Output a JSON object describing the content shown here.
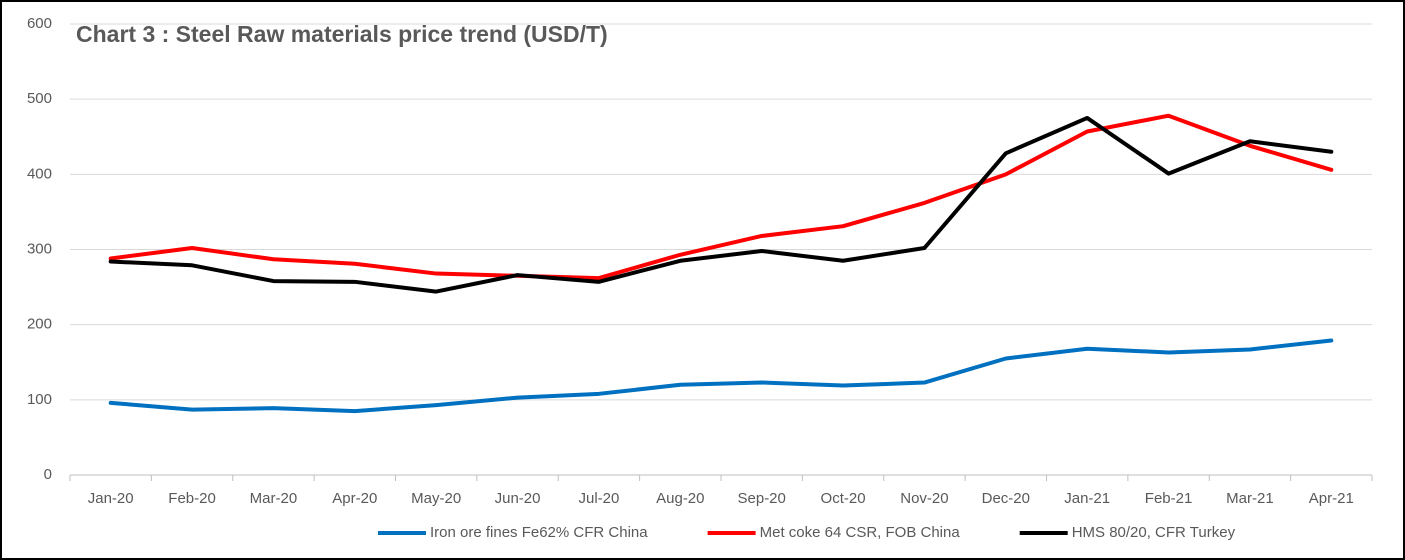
{
  "chart_data": {
    "type": "line",
    "title": "Chart 3 : Steel Raw materials price trend (USD/T)",
    "categories": [
      "Jan-20",
      "Feb-20",
      "Mar-20",
      "Apr-20",
      "May-20",
      "Jun-20",
      "Jul-20",
      "Aug-20",
      "Sep-20",
      "Oct-20",
      "Nov-20",
      "Dec-20",
      "Jan-21",
      "Feb-21",
      "Mar-21",
      "Apr-21"
    ],
    "series": [
      {
        "name": "Iron ore fines Fe62% CFR China",
        "color": "#0070c0",
        "values": [
          96,
          87,
          89,
          85,
          93,
          103,
          108,
          120,
          123,
          119,
          123,
          155,
          168,
          163,
          167,
          179
        ]
      },
      {
        "name": "Met coke 64 CSR, FOB China",
        "color": "#ff0000",
        "values": [
          288,
          302,
          287,
          281,
          268,
          265,
          262,
          293,
          318,
          331,
          362,
          400,
          457,
          478,
          438,
          406
        ]
      },
      {
        "name": "HMS 80/20, CFR Turkey",
        "color": "#000000",
        "values": [
          284,
          279,
          258,
          257,
          244,
          266,
          257,
          285,
          298,
          285,
          302,
          428,
          475,
          401,
          444,
          430
        ]
      }
    ],
    "ylim": [
      0,
      600
    ],
    "yticks": [
      0,
      100,
      200,
      300,
      400,
      500,
      600
    ],
    "grid": true,
    "legend": "bottom"
  }
}
